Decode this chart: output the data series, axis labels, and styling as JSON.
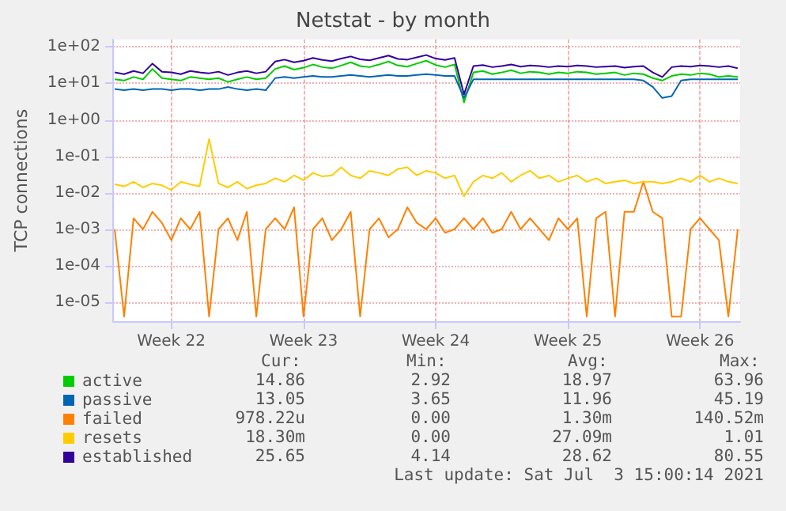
{
  "chart_data": {
    "type": "line",
    "title": "Netstat - by month",
    "ylabel": "TCP connections",
    "log": "y",
    "grid": true,
    "legend": "bottom left",
    "marker": "none",
    "line_style": "solid",
    "x": [
      "2021-05-31T12:00",
      "2021-06-01T00:00",
      "2021-06-01T12:00",
      "2021-06-02T00:00",
      "2021-06-02T12:00",
      "2021-06-03T00:00",
      "2021-06-03T12:00",
      "2021-06-04T00:00",
      "2021-06-04T12:00",
      "2021-06-05T00:00",
      "2021-06-05T12:00",
      "2021-06-06T00:00",
      "2021-06-06T12:00",
      "2021-06-07T00:00",
      "2021-06-07T12:00",
      "2021-06-08T00:00",
      "2021-06-08T12:00",
      "2021-06-09T00:00",
      "2021-06-09T12:00",
      "2021-06-10T00:00",
      "2021-06-10T12:00",
      "2021-06-11T00:00",
      "2021-06-11T12:00",
      "2021-06-12T00:00",
      "2021-06-12T12:00",
      "2021-06-13T00:00",
      "2021-06-13T12:00",
      "2021-06-14T00:00",
      "2021-06-14T12:00",
      "2021-06-15T00:00",
      "2021-06-15T12:00",
      "2021-06-16T00:00",
      "2021-06-16T12:00",
      "2021-06-17T00:00",
      "2021-06-17T12:00",
      "2021-06-18T00:00",
      "2021-06-18T12:00",
      "2021-06-19T00:00",
      "2021-06-19T12:00",
      "2021-06-20T00:00",
      "2021-06-20T12:00",
      "2021-06-21T00:00",
      "2021-06-21T12:00",
      "2021-06-22T00:00",
      "2021-06-22T12:00",
      "2021-06-23T00:00",
      "2021-06-23T12:00",
      "2021-06-24T00:00",
      "2021-06-24T12:00",
      "2021-06-25T00:00",
      "2021-06-25T12:00",
      "2021-06-26T00:00",
      "2021-06-26T12:00",
      "2021-06-27T00:00",
      "2021-06-27T12:00",
      "2021-06-28T00:00",
      "2021-06-28T12:00",
      "2021-06-29T00:00",
      "2021-06-29T12:00",
      "2021-06-30T00:00",
      "2021-06-30T12:00",
      "2021-07-01T00:00",
      "2021-07-01T12:00",
      "2021-07-02T00:00",
      "2021-07-02T12:00",
      "2021-07-03T00:00",
      "2021-07-03T12:00"
    ],
    "series": [
      {
        "name": "active",
        "color": "#00cc00",
        "values": [
          13,
          12,
          15,
          13,
          25,
          14,
          13,
          12,
          15,
          14,
          13,
          14,
          11,
          13,
          15,
          13,
          14,
          25,
          30,
          24,
          27,
          33,
          28,
          26,
          31,
          38,
          30,
          28,
          33,
          40,
          31,
          29,
          35,
          42,
          32,
          28,
          33,
          3,
          20,
          22,
          18,
          20,
          23,
          19,
          21,
          20,
          18,
          20,
          19,
          21,
          20,
          18,
          19,
          20,
          17,
          19,
          18,
          14,
          12,
          16,
          18,
          17,
          19,
          18,
          15,
          16,
          15
        ]
      },
      {
        "name": "passive",
        "color": "#0066b3",
        "values": [
          7,
          6.5,
          7,
          6.5,
          7,
          7,
          6.5,
          7,
          7,
          6.5,
          7,
          7,
          8,
          7,
          6.5,
          7,
          6.5,
          14,
          15,
          14,
          15,
          16,
          15,
          15,
          16,
          17,
          16,
          15,
          16,
          17,
          16,
          16,
          17,
          18,
          17,
          16,
          16,
          4,
          13,
          13,
          13,
          13,
          13,
          13,
          13,
          13,
          13,
          13,
          13,
          13,
          13,
          13,
          13,
          13,
          13,
          13,
          12,
          8,
          4,
          4.5,
          12,
          13,
          13,
          13,
          13,
          13,
          13
        ]
      },
      {
        "name": "failed",
        "color": "#ff8000",
        "values": [
          0.001,
          4e-06,
          0.002,
          0.001,
          0.003,
          0.0015,
          0.0005,
          0.002,
          0.001,
          0.003,
          4e-06,
          0.001,
          0.002,
          0.0005,
          0.003,
          4e-06,
          0.001,
          0.002,
          0.001,
          0.004,
          4e-06,
          0.001,
          0.002,
          0.0005,
          0.001,
          0.003,
          4e-06,
          0.001,
          0.002,
          0.0006,
          0.001,
          0.004,
          0.0015,
          0.001,
          0.002,
          0.0008,
          0.001,
          0.002,
          0.001,
          0.002,
          0.0008,
          0.001,
          0.003,
          0.001,
          0.002,
          0.001,
          0.0005,
          0.002,
          0.001,
          0.002,
          4e-06,
          0.002,
          0.003,
          4e-06,
          0.003,
          0.003,
          0.02,
          0.003,
          0.002,
          4e-06,
          4e-06,
          0.001,
          0.002,
          0.001,
          0.0005,
          4e-06,
          0.001
        ]
      },
      {
        "name": "resets",
        "color": "#ffcc00",
        "values": [
          0.017,
          0.015,
          0.02,
          0.014,
          0.018,
          0.016,
          0.012,
          0.02,
          0.017,
          0.015,
          0.3,
          0.018,
          0.014,
          0.02,
          0.013,
          0.016,
          0.018,
          0.025,
          0.02,
          0.03,
          0.022,
          0.035,
          0.028,
          0.03,
          0.05,
          0.03,
          0.025,
          0.04,
          0.035,
          0.03,
          0.045,
          0.05,
          0.03,
          0.04,
          0.035,
          0.025,
          0.03,
          0.008,
          0.02,
          0.03,
          0.025,
          0.035,
          0.02,
          0.03,
          0.04,
          0.025,
          0.03,
          0.02,
          0.025,
          0.03,
          0.02,
          0.025,
          0.018,
          0.02,
          0.022,
          0.018,
          0.02,
          0.02,
          0.018,
          0.02,
          0.025,
          0.02,
          0.03,
          0.02,
          0.025,
          0.02,
          0.018
        ]
      },
      {
        "name": "established",
        "color": "#330099",
        "values": [
          20,
          18,
          22,
          19,
          35,
          21,
          20,
          18,
          22,
          20,
          19,
          21,
          17,
          20,
          22,
          19,
          21,
          40,
          45,
          38,
          42,
          50,
          44,
          41,
          48,
          55,
          46,
          43,
          50,
          58,
          47,
          45,
          52,
          60,
          48,
          44,
          50,
          5,
          30,
          32,
          28,
          30,
          33,
          29,
          31,
          30,
          28,
          30,
          29,
          31,
          30,
          28,
          29,
          30,
          27,
          29,
          30,
          20,
          15,
          28,
          30,
          29,
          31,
          30,
          28,
          30,
          26
        ]
      }
    ],
    "xlim": [
      "2021-05-31T10:00",
      "2021-07-03T15:00"
    ],
    "xticks": [
      {
        "value": "2021-06-03T12:00",
        "label": "Week 22"
      },
      {
        "value": "2021-06-10T12:00",
        "label": "Week 23"
      },
      {
        "value": "2021-06-17T12:00",
        "label": "Week 24"
      },
      {
        "value": "2021-06-24T12:00",
        "label": "Week 25"
      },
      {
        "value": "2021-07-01T12:00",
        "label": "Week 26"
      }
    ],
    "ylim": [
      3e-06,
      160
    ],
    "yticks": [
      {
        "value": 100,
        "label": "1e+02"
      },
      {
        "value": 10,
        "label": "1e+01"
      },
      {
        "value": 1,
        "label": "1e+00"
      },
      {
        "value": 0.1,
        "label": "1e-01"
      },
      {
        "value": 0.01,
        "label": "1e-02"
      },
      {
        "value": 0.001,
        "label": "1e-03"
      },
      {
        "value": 0.0001,
        "label": "1e-04"
      },
      {
        "value": 1e-05,
        "label": "1e-05"
      }
    ],
    "annotations": [
      "Cur:",
      "Min:",
      "Avg:",
      "Max:",
      "14.86",
      "2.92",
      "18.97",
      "63.96",
      "13.05",
      "3.65",
      "11.96",
      "45.19",
      "978.22u",
      "0.00",
      "1.30m",
      "140.52m",
      "18.30m",
      "0.00",
      "27.09m",
      "1.01",
      "25.65",
      "4.14",
      "28.62",
      "80.55",
      "Last update: Sat Jul  3 15:00:14 2021"
    ]
  }
}
